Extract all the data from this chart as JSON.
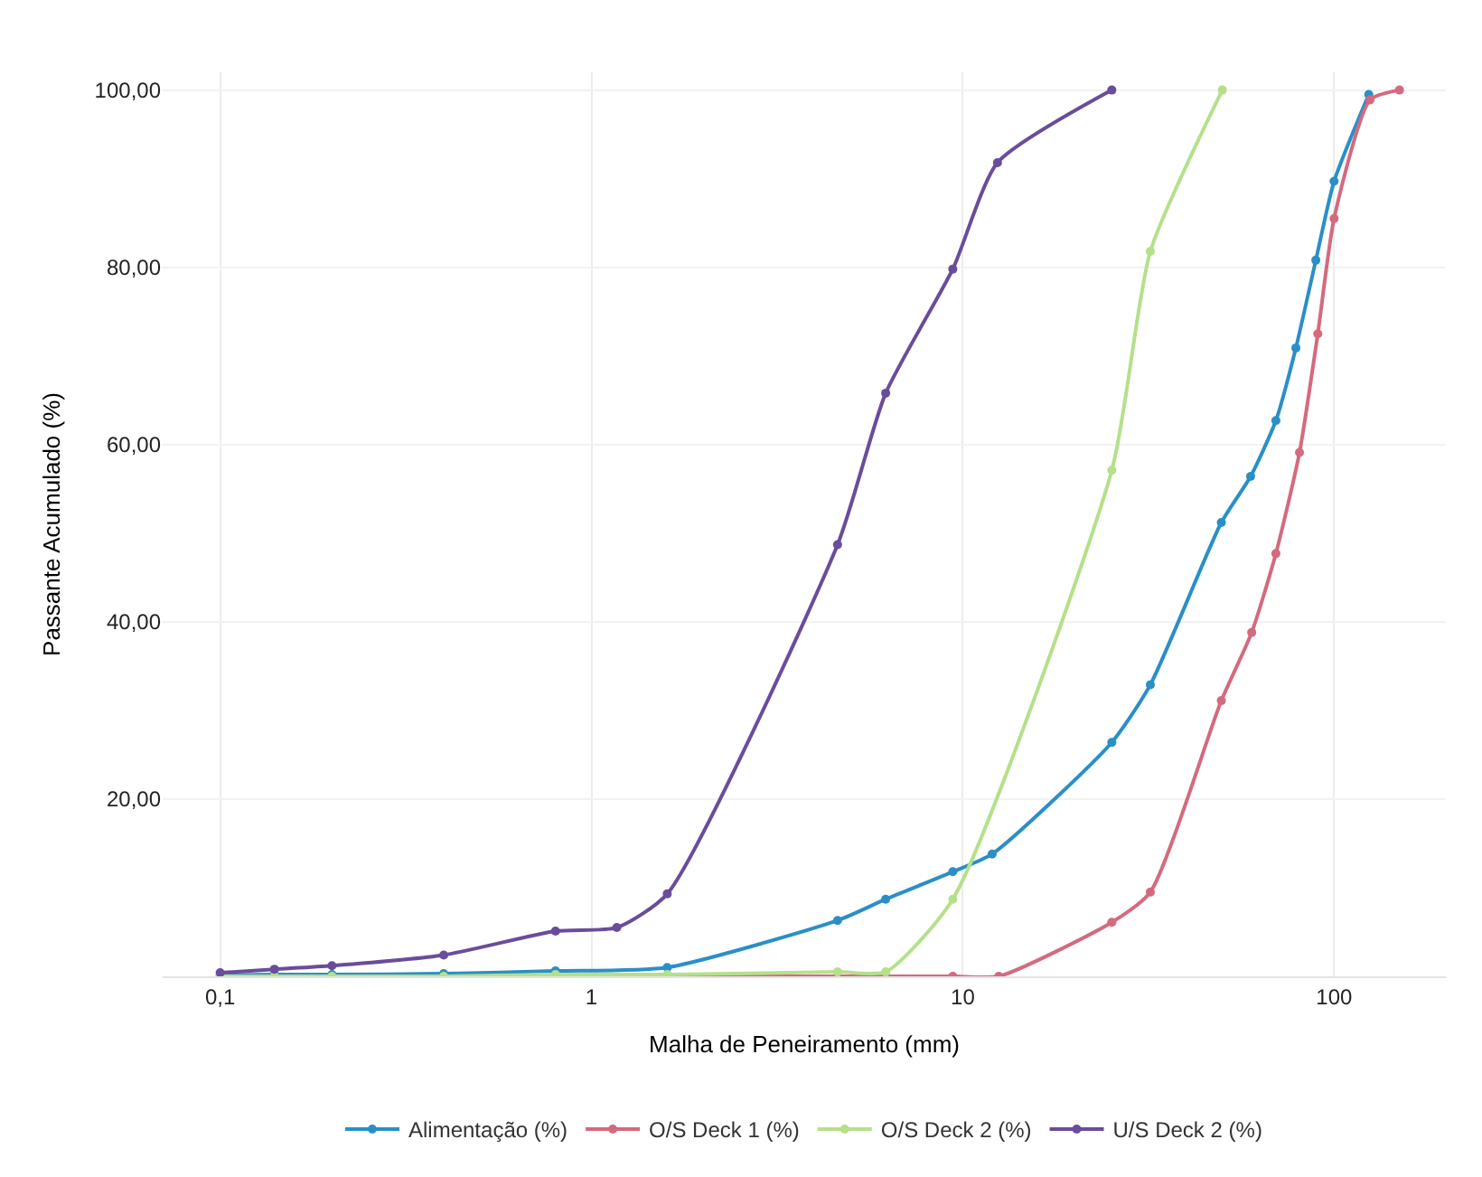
{
  "chart_data": {
    "type": "line",
    "xlabel": "Malha de Peneiramento (mm)",
    "ylabel": "Passante Acumulado (%)",
    "log": "x",
    "xlim": [
      0.07,
      200
    ],
    "xticks": [
      {
        "value": 0.1,
        "label": "0,1"
      },
      1,
      10,
      100
    ],
    "ylim": [
      0,
      102
    ],
    "yticks": [
      {
        "value": 20,
        "label": "20,00"
      },
      {
        "value": 40,
        "label": "40,00"
      },
      {
        "value": 60,
        "label": "60,00"
      },
      {
        "value": 80,
        "label": "80,00"
      },
      {
        "value": 100,
        "label": "100,00"
      }
    ],
    "grid": true,
    "legend": "bottom",
    "marker": "circle",
    "line_style": "solid",
    "series": [
      {
        "name": "Alimentação (%)",
        "color": "#2a8fc7",
        "x": [
          0.1,
          0.14,
          0.2,
          0.4,
          0.8,
          1.6,
          4.6,
          6.2,
          9.4,
          12,
          25.2,
          32,
          49.7,
          59.6,
          69.7,
          78.9,
          89.3,
          100,
          124
        ],
        "values": [
          0.1,
          0.2,
          0.2,
          0.3,
          0.6,
          1.0,
          6.3,
          8.7,
          11.8,
          13.8,
          26.4,
          32.9,
          51.2,
          56.4,
          62.7,
          70.9,
          80.8,
          89.7,
          99.5
        ]
      },
      {
        "name": "O/S Deck 1 (%)",
        "color": "#d46a7e",
        "x": [
          0.8,
          1.6,
          4.6,
          6.2,
          9.4,
          12.5,
          25.2,
          32,
          49.7,
          60,
          69.7,
          80.7,
          90.4,
          100,
          125,
          150
        ],
        "values": [
          0,
          0,
          0,
          0,
          0,
          0,
          6.1,
          9.5,
          31.1,
          38.8,
          47.7,
          59.1,
          72.5,
          85.5,
          98.9,
          100
        ]
      },
      {
        "name": "O/S Deck 2 (%)",
        "color": "#b5e08a",
        "x": [
          0.1,
          0.14,
          0.2,
          0.4,
          0.8,
          1.6,
          4.6,
          6.2,
          9.4,
          25.2,
          32,
          50
        ],
        "values": [
          0,
          0,
          0,
          0,
          0.2,
          0.2,
          0.5,
          0.5,
          8.7,
          57.1,
          81.8,
          100
        ]
      },
      {
        "name": "U/S Deck 2 (%)",
        "color": "#6a4c9c",
        "x": [
          0.1,
          0.14,
          0.2,
          0.4,
          0.8,
          1.17,
          1.6,
          4.6,
          6.2,
          9.4,
          12.4,
          25.2
        ],
        "values": [
          0.4,
          0.8,
          1.2,
          2.4,
          5.1,
          5.5,
          9.3,
          48.7,
          65.8,
          79.8,
          91.8,
          100
        ]
      }
    ]
  }
}
